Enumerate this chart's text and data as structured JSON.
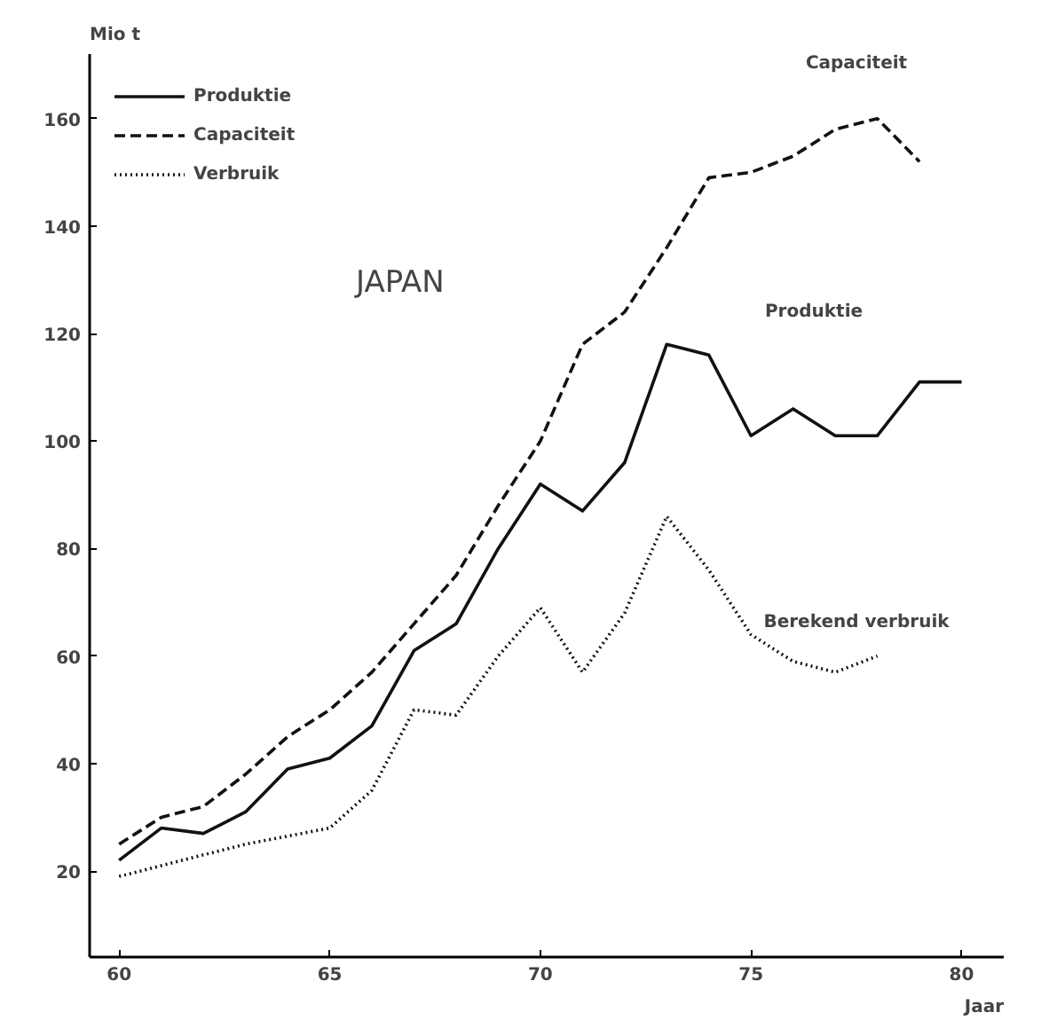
{
  "chart_data": {
    "type": "line",
    "title": "JAPAN",
    "xlabel": "Jaar",
    "ylabel": "Mio t",
    "x": [
      60,
      61,
      62,
      63,
      64,
      65,
      66,
      67,
      68,
      69,
      70,
      71,
      72,
      73,
      74,
      75,
      76,
      77,
      78,
      79,
      80
    ],
    "series": [
      {
        "name": "Produktie",
        "color": "#111111",
        "line_style": "solid",
        "values": [
          22,
          28,
          27,
          31,
          39,
          41,
          47,
          61,
          66,
          80,
          92,
          87,
          96,
          118,
          116,
          101,
          106,
          101,
          101,
          111,
          111
        ]
      },
      {
        "name": "Capaciteit",
        "color": "#111111",
        "line_style": "dashed",
        "values": [
          25,
          30,
          32,
          38,
          45,
          50,
          57,
          66,
          75,
          88,
          100,
          118,
          124,
          136,
          149,
          150,
          153,
          158,
          160,
          152,
          null
        ]
      },
      {
        "name": "Verbruik",
        "color": "#111111",
        "line_style": "dotted",
        "values": [
          19,
          21,
          23,
          25,
          26.5,
          28,
          35,
          50,
          49,
          60,
          69,
          57,
          68,
          86,
          76,
          64,
          59,
          57,
          60,
          null,
          null
        ]
      }
    ],
    "annotations": [
      "Capaciteit",
      "Produktie",
      "Berekend verbruik"
    ],
    "xlim": [
      59.3,
      81
    ],
    "ylim": [
      4,
      172
    ],
    "xticks": [
      60,
      65,
      70,
      75,
      80
    ],
    "yticks": [
      20,
      40,
      60,
      80,
      100,
      120,
      140,
      160
    ],
    "grid": false,
    "legend": "top left",
    "marker": "none"
  }
}
